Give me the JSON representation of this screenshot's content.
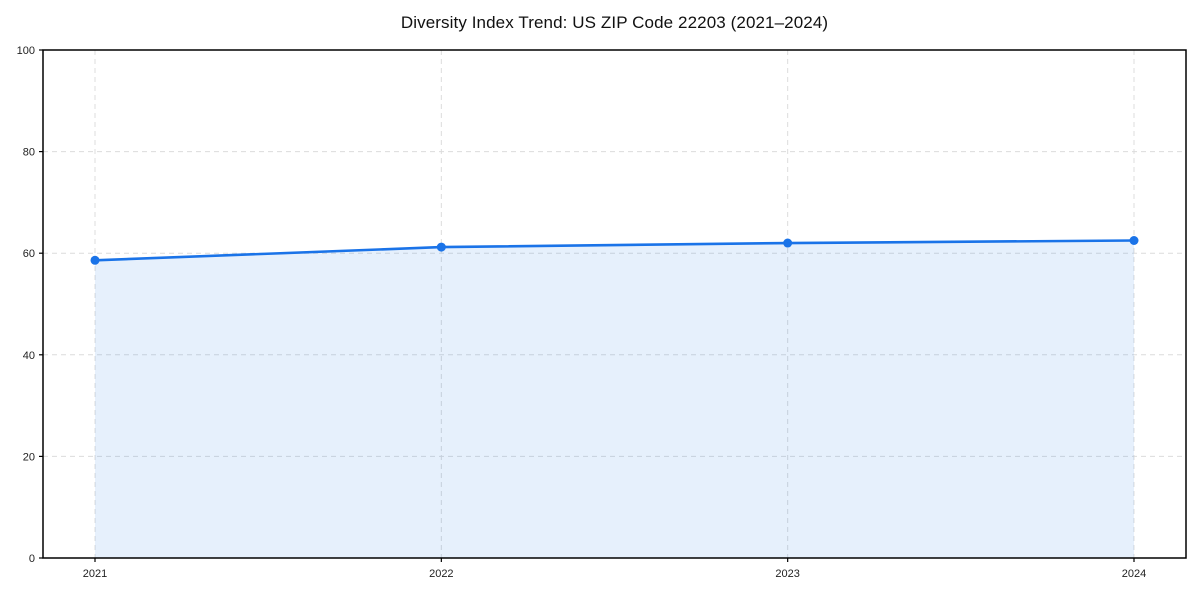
{
  "page": {
    "background": "#ffffff"
  },
  "chart_data": {
    "type": "area",
    "title": "Diversity Index Trend: US ZIP Code 22203 (2021–2024)",
    "x": [
      "2021",
      "2022",
      "2023",
      "2024"
    ],
    "series": [
      {
        "name": "Diversity Index",
        "values": [
          58.6,
          61.2,
          62.0,
          62.5
        ]
      }
    ],
    "xlabel": "",
    "ylabel": "",
    "ylim": [
      0,
      100
    ],
    "yticks": [
      0,
      20,
      40,
      60,
      80,
      100
    ],
    "grid": true,
    "grid_style": "dashed",
    "legend": "none",
    "marker": "circle",
    "line_color": "#1a73e8",
    "fill_color": "#1a73e8",
    "fill_opacity": 0.11,
    "grid_color": "#dcdcdc",
    "spine_color": "#000000",
    "tick_label_color": "#222222"
  }
}
